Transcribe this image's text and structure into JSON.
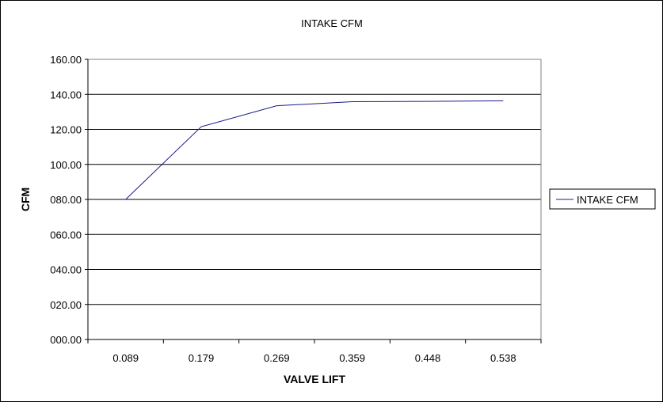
{
  "chart_data": {
    "type": "line",
    "title": "INTAKE CFM",
    "xlabel": "VALVE LIFT",
    "ylabel": "CFM",
    "categories": [
      "0.089",
      "0.179",
      "0.269",
      "0.359",
      "0.448",
      "0.538"
    ],
    "series": [
      {
        "name": "INTAKE CFM",
        "values": [
          80.0,
          121.5,
          133.5,
          135.8,
          136.0,
          136.3
        ]
      }
    ],
    "y_ticks": [
      "000.00",
      "020.00",
      "040.00",
      "060.00",
      "080.00",
      "100.00",
      "120.00",
      "140.00",
      "160.00"
    ],
    "ylim": [
      0,
      160
    ],
    "grid": true,
    "legend_position": "right",
    "colors": {
      "series": "#1a1a8c",
      "grid": "#000000",
      "background": "#ffffff"
    }
  }
}
